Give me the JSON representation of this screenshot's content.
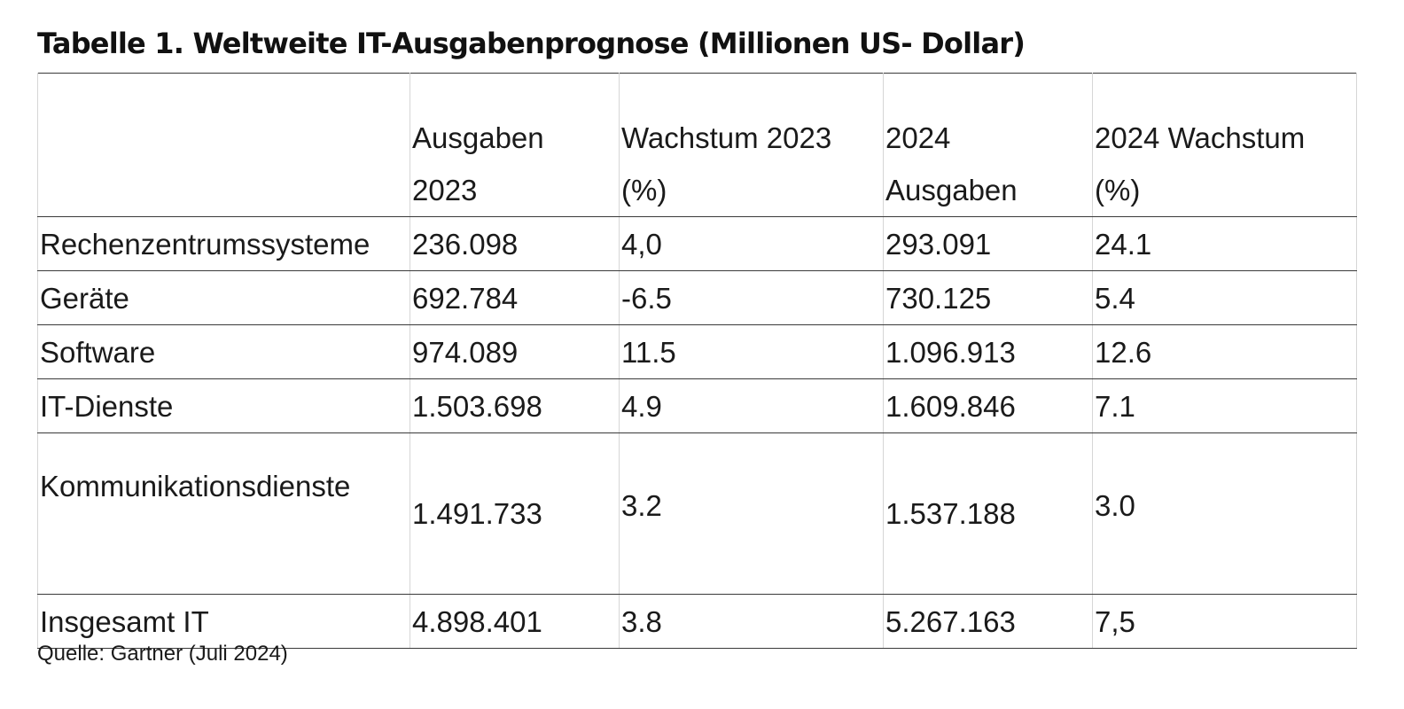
{
  "title": "Tabelle 1. Weltweite IT-Ausgabenprognose (Millionen US- Dollar)",
  "table": {
    "headers": [
      {
        "line1": "",
        "line2": ""
      },
      {
        "line1": "Ausgaben",
        "line2": "2023"
      },
      {
        "line1": "Wachstum 2023",
        "line2": "(%)"
      },
      {
        "line1": "2024",
        "line2": "Ausgaben"
      },
      {
        "line1": "2024 Wachstum",
        "line2": "(%)"
      }
    ],
    "rows": [
      [
        "Rechenzentrumssysteme",
        "236.098",
        "4,0",
        "293.091",
        "24.1"
      ],
      [
        "Geräte",
        "692.784",
        "-6.5",
        "730.125",
        "5.4"
      ],
      [
        "Software",
        "974.089",
        "11.5",
        "1.096.913",
        "12.6"
      ],
      [
        "IT-Dienste",
        "1.503.698",
        "4.9",
        "1.609.846",
        "7.1"
      ],
      [
        "Kommunikationsdienste",
        "1.491.733",
        "3.2",
        "1.537.188",
        "3.0"
      ],
      [
        "Insgesamt IT",
        "4.898.401",
        "3.8",
        "5.267.163",
        "7,5"
      ]
    ]
  },
  "source": "Quelle: Gartner (Juli 2024)"
}
